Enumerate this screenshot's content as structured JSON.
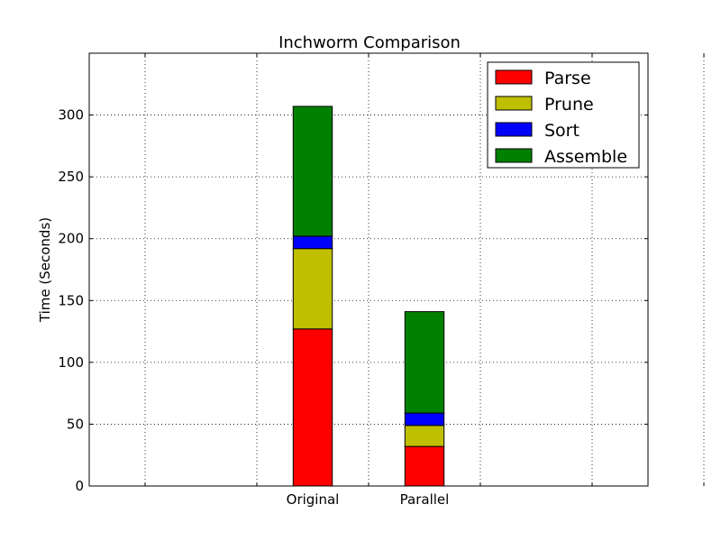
{
  "chart_data": {
    "type": "bar",
    "stacked": true,
    "title": "Inchworm Comparison",
    "xlabel": "",
    "ylabel": "Time (Seconds)",
    "categories": [
      "Original",
      "Parallel"
    ],
    "series": [
      {
        "name": "Parse",
        "color": "#ff0000",
        "values": [
          127,
          32
        ]
      },
      {
        "name": "Prune",
        "color": "#bfbf00",
        "values": [
          65,
          17
        ]
      },
      {
        "name": "Sort",
        "color": "#0000ff",
        "values": [
          10,
          10
        ]
      },
      {
        "name": "Assemble",
        "color": "#008000",
        "values": [
          105,
          82
        ]
      }
    ],
    "ylim": [
      0,
      350
    ],
    "yticks": [
      0,
      50,
      100,
      150,
      200,
      250,
      300
    ],
    "xlim": [
      -0.5,
      4.5
    ],
    "category_positions": [
      1.5,
      2.5
    ],
    "xgrid_positions": [
      0,
      1,
      2,
      3,
      4,
      5
    ],
    "grid": true,
    "legend_position": "top-right"
  }
}
